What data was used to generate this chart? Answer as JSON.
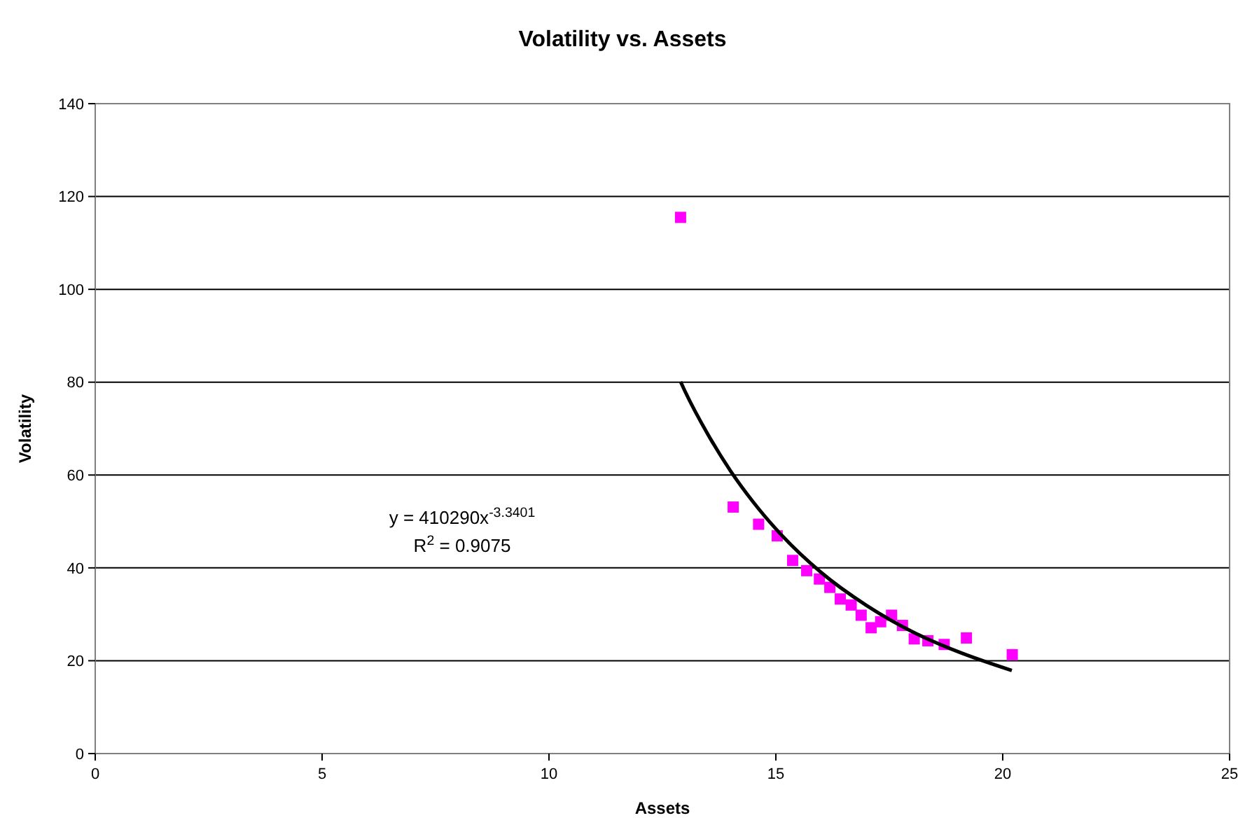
{
  "chart_data": {
    "type": "scatter",
    "title": "Volatility vs. Assets",
    "xlabel": "Assets",
    "ylabel": "Volatility",
    "xlim": [
      0,
      25
    ],
    "xticks": [
      0,
      5,
      10,
      15,
      20,
      25
    ],
    "ylim": [
      0,
      140
    ],
    "yticks": [
      0,
      20,
      40,
      60,
      80,
      100,
      120,
      140
    ],
    "grid": "y",
    "series": [
      {
        "color": "#ff00ff",
        "marker": "square",
        "x": [
          12.9,
          14.06,
          14.62,
          15.03,
          15.37,
          15.68,
          15.96,
          16.19,
          16.42,
          16.66,
          16.88,
          17.1,
          17.31,
          17.55,
          17.79,
          18.05,
          18.35,
          18.71,
          19.2,
          20.21
        ],
        "values": [
          115.5,
          53.1,
          49.4,
          46.9,
          41.6,
          39.4,
          37.6,
          35.8,
          33.3,
          32,
          29.8,
          27.1,
          28.4,
          29.8,
          27.6,
          24.7,
          24.3,
          23.5,
          24.9,
          21.3
        ]
      },
      {
        "type": "line",
        "color": "#000000",
        "marker": "none",
        "x": [
          12.9,
          13,
          13.5,
          14,
          14.5,
          15,
          16,
          17,
          18,
          19,
          20.2
        ],
        "values": [
          80.1,
          78,
          68.8,
          60.9,
          54.2,
          48.4,
          39,
          31.9,
          26.3,
          22,
          17.9
        ]
      }
    ],
    "annotations": [
      "y = 410290x$^{-3.3401}$",
      "R$^{2}$ = 0.9075"
    ]
  }
}
